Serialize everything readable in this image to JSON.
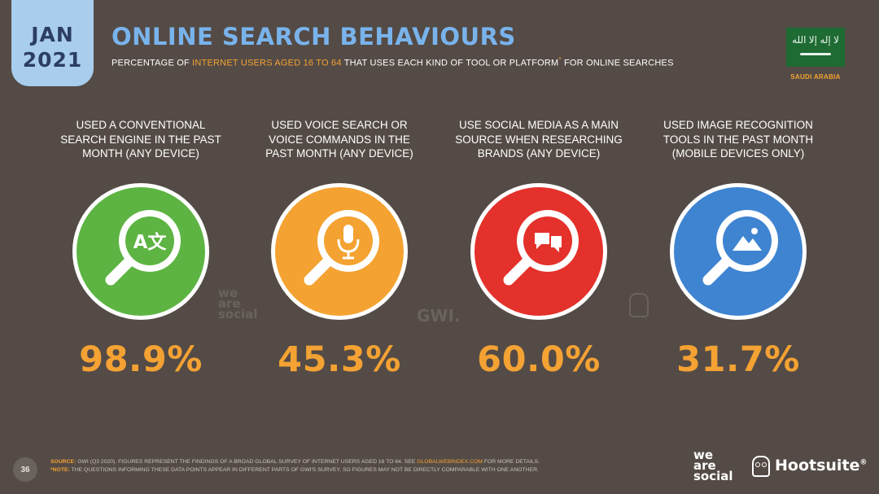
{
  "header": {
    "date_month": "JAN",
    "date_year": "2021",
    "title": "ONLINE SEARCH BEHAVIOURS",
    "subtitle_pre": "PERCENTAGE OF ",
    "subtitle_highlight": "INTERNET USERS AGED 16 TO 64",
    "subtitle_post": " THAT USES EACH KIND OF TOOL OR PLATFORM",
    "subtitle_asterisk": "*",
    "subtitle_tail": " FOR ONLINE SEARCHES",
    "country": "SAUDI ARABIA",
    "flag_text": "لا إله إلا الله"
  },
  "stats": [
    {
      "label": "USED A CONVENTIONAL SEARCH ENGINE IN THE PAST MONTH (ANY DEVICE)",
      "value": "98.9%",
      "color": "#5db442",
      "icon": "translate-icon"
    },
    {
      "label": "USED VOICE SEARCH OR VOICE COMMANDS IN THE PAST MONTH (ANY DEVICE)",
      "value": "45.3%",
      "color": "#f4a231",
      "icon": "microphone-icon"
    },
    {
      "label": "USE SOCIAL MEDIA AS A MAIN SOURCE WHEN RESEARCHING BRANDS (ANY DEVICE)",
      "value": "60.0%",
      "color": "#e4312b",
      "icon": "chat-bubbles-icon"
    },
    {
      "label": "USED IMAGE RECOGNITION TOOLS IN THE PAST MONTH (MOBILE DEVICES ONLY)",
      "value": "31.7%",
      "color": "#3e84d1",
      "icon": "image-icon"
    }
  ],
  "icon_glyph": "A文",
  "watermarks": {
    "social_1": "we",
    "social_2": "are",
    "social_3": "social",
    "gwi": "GWI."
  },
  "footer": {
    "page_number": "36",
    "source_key": "SOURCE:",
    "source_text": " GWI (Q3 2020). FIGURES REPRESENT THE FINDINGS OF A BROAD GLOBAL SURVEY OF INTERNET USERS AGED 16 TO 64. SEE ",
    "source_link": "GLOBALWEBINDEX.COM",
    "source_tail": " FOR MORE DETAILS.",
    "note_key": "*NOTE:",
    "note_text": " THE QUESTIONS INFORMING THESE DATA POINTS APPEAR IN DIFFERENT PARTS OF GWI'S SURVEY, SO FIGURES MAY NOT BE DIRECTLY COMPARABLE WITH ONE ANOTHER.",
    "brand_was_1": "we",
    "brand_was_2": "are",
    "brand_was_3": "social",
    "brand_hootsuite": "Hootsuite",
    "brand_reg": "®"
  }
}
